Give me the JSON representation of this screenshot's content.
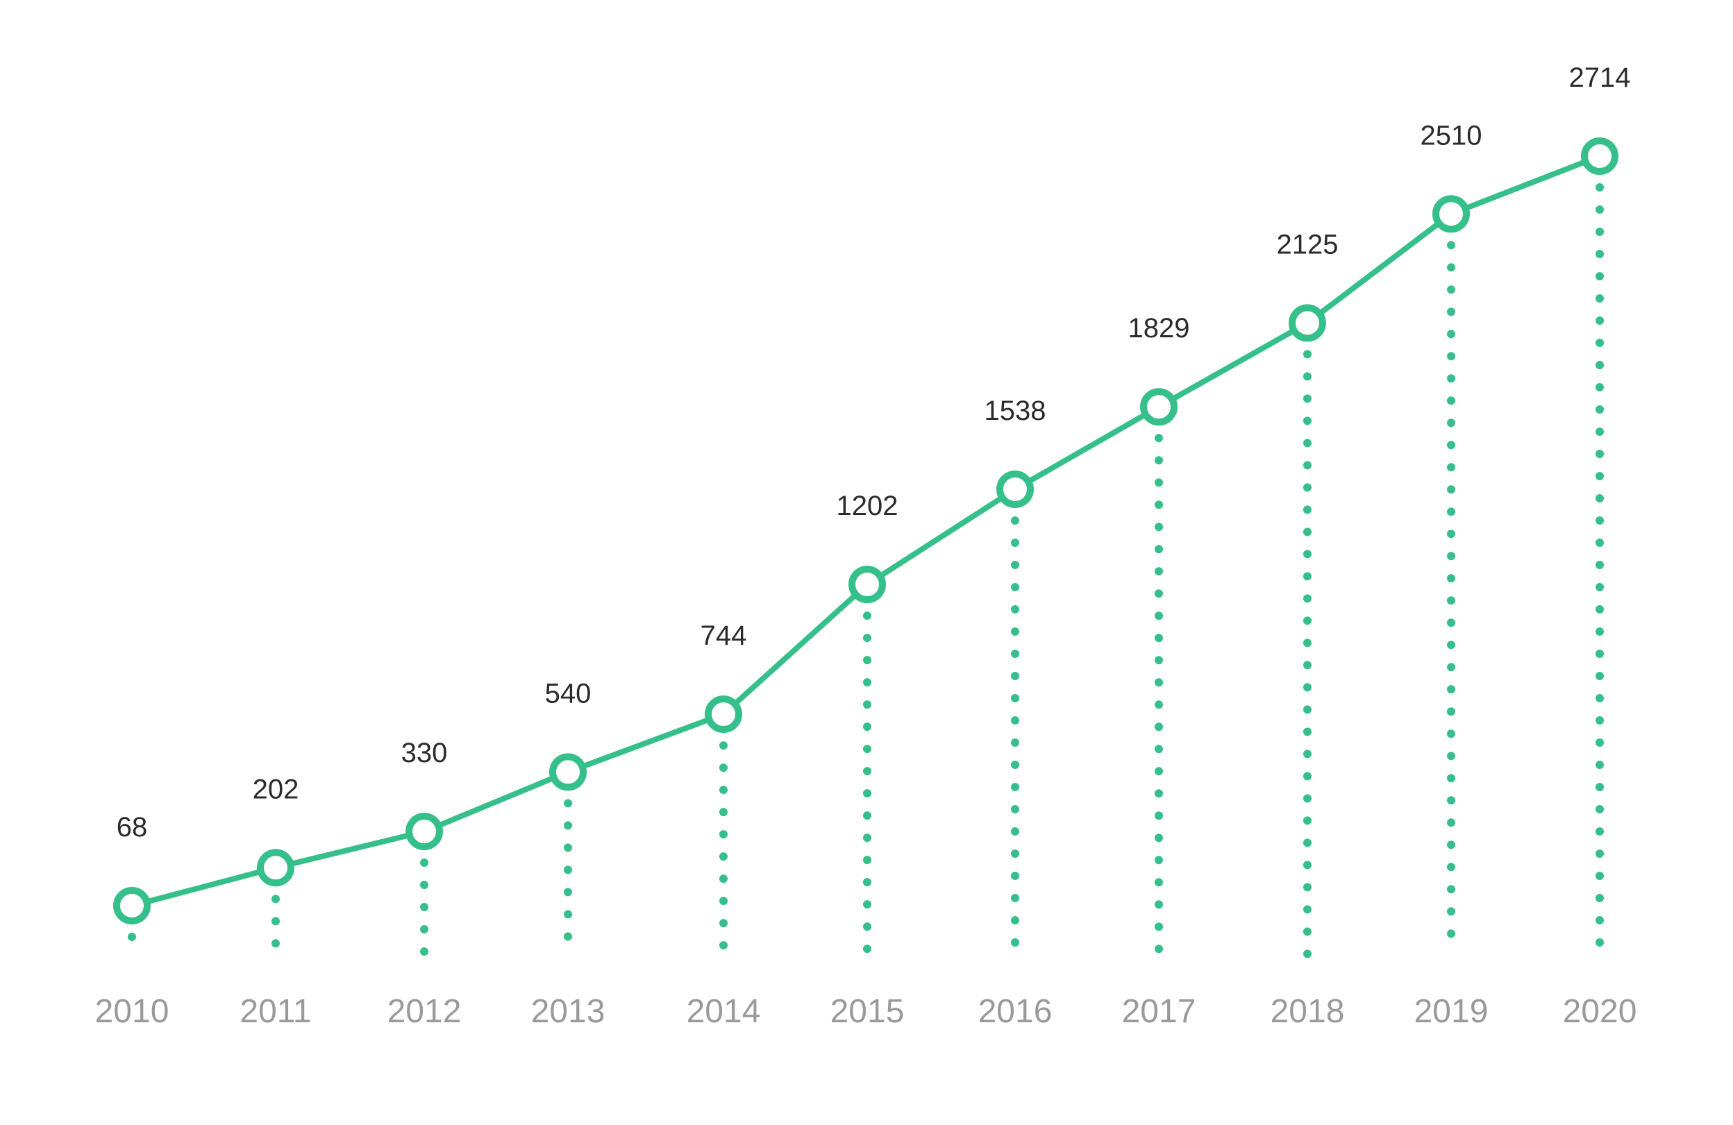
{
  "chart_data": {
    "type": "line",
    "x": [
      "2010",
      "2011",
      "2012",
      "2013",
      "2014",
      "2015",
      "2016",
      "2017",
      "2018",
      "2019",
      "2020"
    ],
    "series": [
      {
        "values": [
          68,
          202,
          330,
          540,
          744,
          1202,
          1538,
          1829,
          2125,
          2510,
          2714
        ]
      }
    ],
    "data_labels": [
      "68",
      "202",
      "330",
      "540",
      "744",
      "1202",
      "1538",
      "1829",
      "2125",
      "2510",
      "2714"
    ],
    "colors": {
      "line": "#35bf8a",
      "marker_fill": "#ffffff",
      "data_label": "#2b2b2b",
      "tick_label": "#9a9a9a"
    },
    "grid": false,
    "legend": "none",
    "drop_lines": "dotted"
  }
}
